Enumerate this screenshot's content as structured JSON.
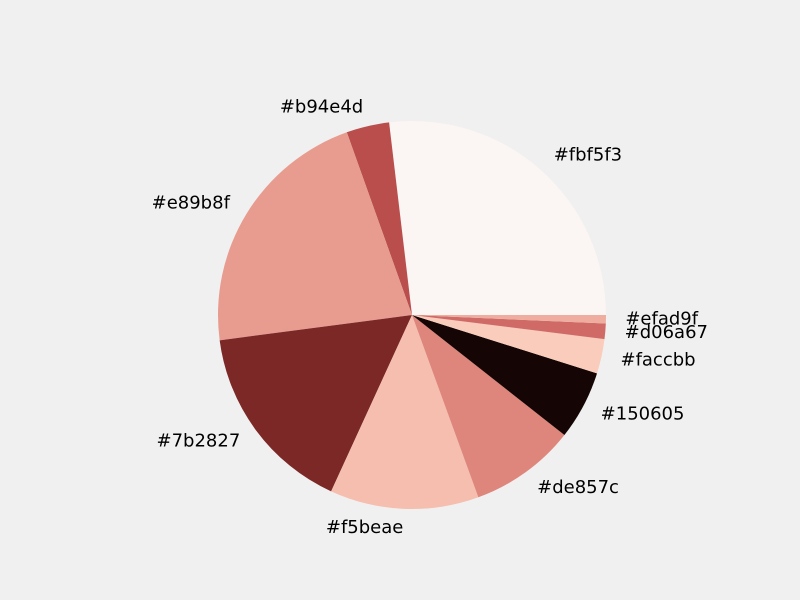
{
  "chart_data": {
    "type": "pie",
    "start_angle_deg": 0,
    "direction": "counterclockwise",
    "slices": [
      {
        "label": "#fbf5f3",
        "value": 27.1,
        "color": "#fbf5f3"
      },
      {
        "label": "#b94e4d",
        "value": 3.6,
        "color": "#b94e4d"
      },
      {
        "label": "#e89b8f",
        "value": 21.8,
        "color": "#e89b8f"
      },
      {
        "label": "#7b2827",
        "value": 16.2,
        "color": "#7b2827"
      },
      {
        "label": "#f5beae",
        "value": 12.5,
        "color": "#f5beae"
      },
      {
        "label": "#de857c",
        "value": 8.9,
        "color": "#de857c"
      },
      {
        "label": "#150605",
        "value": 5.8,
        "color": "#150605"
      },
      {
        "label": "#faccbb",
        "value": 2.9,
        "color": "#faccbb"
      },
      {
        "label": "#d06a67",
        "value": 1.3,
        "color": "#d06a67"
      },
      {
        "label": "#efad9f",
        "value": 0.7,
        "color": "#efad9f"
      }
    ]
  }
}
